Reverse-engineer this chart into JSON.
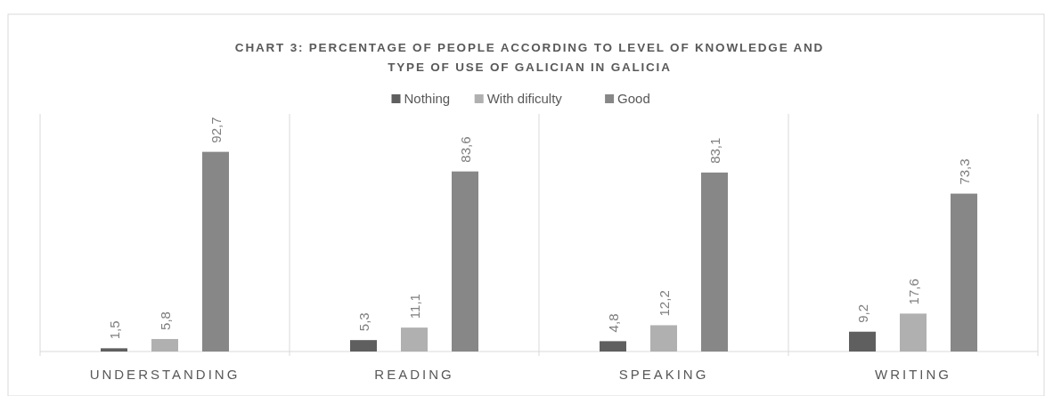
{
  "chart_data": {
    "type": "bar",
    "title": "CHART 3: PERCENTAGE OF PEOPLE ACCORDING TO LEVEL OF KNOWLEDGE AND TYPE OF USE OF GALICIAN IN GALICIA",
    "categories": [
      "UNDERSTANDING",
      "READING",
      "SPEAKING",
      "WRITING"
    ],
    "series": [
      {
        "name": "Nothing",
        "color": "#5f5f5f",
        "values": [
          1.5,
          5.3,
          4.8,
          9.2
        ],
        "value_labels": [
          "1,5",
          "5,3",
          "4,8",
          "9,2"
        ]
      },
      {
        "name": "With dificulty",
        "color": "#b0b0b0",
        "values": [
          5.8,
          11.1,
          12.2,
          17.6
        ],
        "value_labels": [
          "5,8",
          "11,1",
          "12,2",
          "17,6"
        ]
      },
      {
        "name": "Good",
        "color": "#878787",
        "values": [
          92.7,
          83.6,
          83.1,
          73.3
        ],
        "value_labels": [
          "92,7",
          "83,6",
          "83,1",
          "73,3"
        ]
      }
    ],
    "legend": "top"
  }
}
